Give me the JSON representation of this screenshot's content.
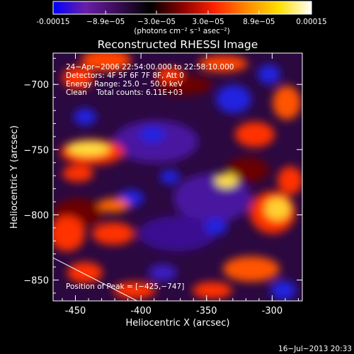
{
  "chart_data": {
    "type": "heatmap",
    "title": "Reconstructed RHESSI Image",
    "xlabel": "Heliocentric X (arcsec)",
    "ylabel": "Heliocentric Y (arcsec)",
    "xlim": [
      -467,
      -277
    ],
    "ylim": [
      -866,
      -676
    ],
    "x_ticks": [
      -450,
      -400,
      -350,
      -300
    ],
    "y_ticks": [
      -700,
      -750,
      -800,
      -850
    ],
    "x_tick_labels": [
      "-450",
      "-400",
      "-350",
      "-300"
    ],
    "y_tick_labels": [
      "−700",
      "−750",
      "−800",
      "−850"
    ],
    "colorbar": {
      "range": [
        -0.00015,
        0.00015
      ],
      "tick_values": [
        -0.00015,
        -8.9e-05,
        -3e-05,
        3e-05,
        8.9e-05,
        0.00015
      ],
      "tick_labels": [
        "-0.00015",
        "−8.9e−05",
        "−3.0e−05",
        "3.0e−05",
        "8.9e−05",
        "0.00015"
      ],
      "unit_label": "(photons cm⁻² s⁻¹ asec⁻²)",
      "colormap": [
        "#0000ff",
        "#6a1fa8",
        "#3a0c56",
        "#000000",
        "#8a0000",
        "#ff2200",
        "#ff8a00",
        "#ffe000",
        "#ffffff"
      ]
    },
    "annotations": {
      "time_range": "24−Apr−2006 22:54:00.000 to 22:58:10.000",
      "detectors": "Detectors: 4F 5F 6F 7F 8F, Att 0",
      "energy_range": "Energy Range: 25.0 − 50.0 keV",
      "method_counts": "Clean    Total counts: 6.11E+03",
      "peak_position": "Position of Peak = [−425,−747]"
    },
    "limb_line": {
      "x": [
        -467,
        -403
      ],
      "y": [
        -833,
        -866
      ]
    }
  },
  "footer": {
    "timestamp": "16−Jul−2013 20:33"
  }
}
